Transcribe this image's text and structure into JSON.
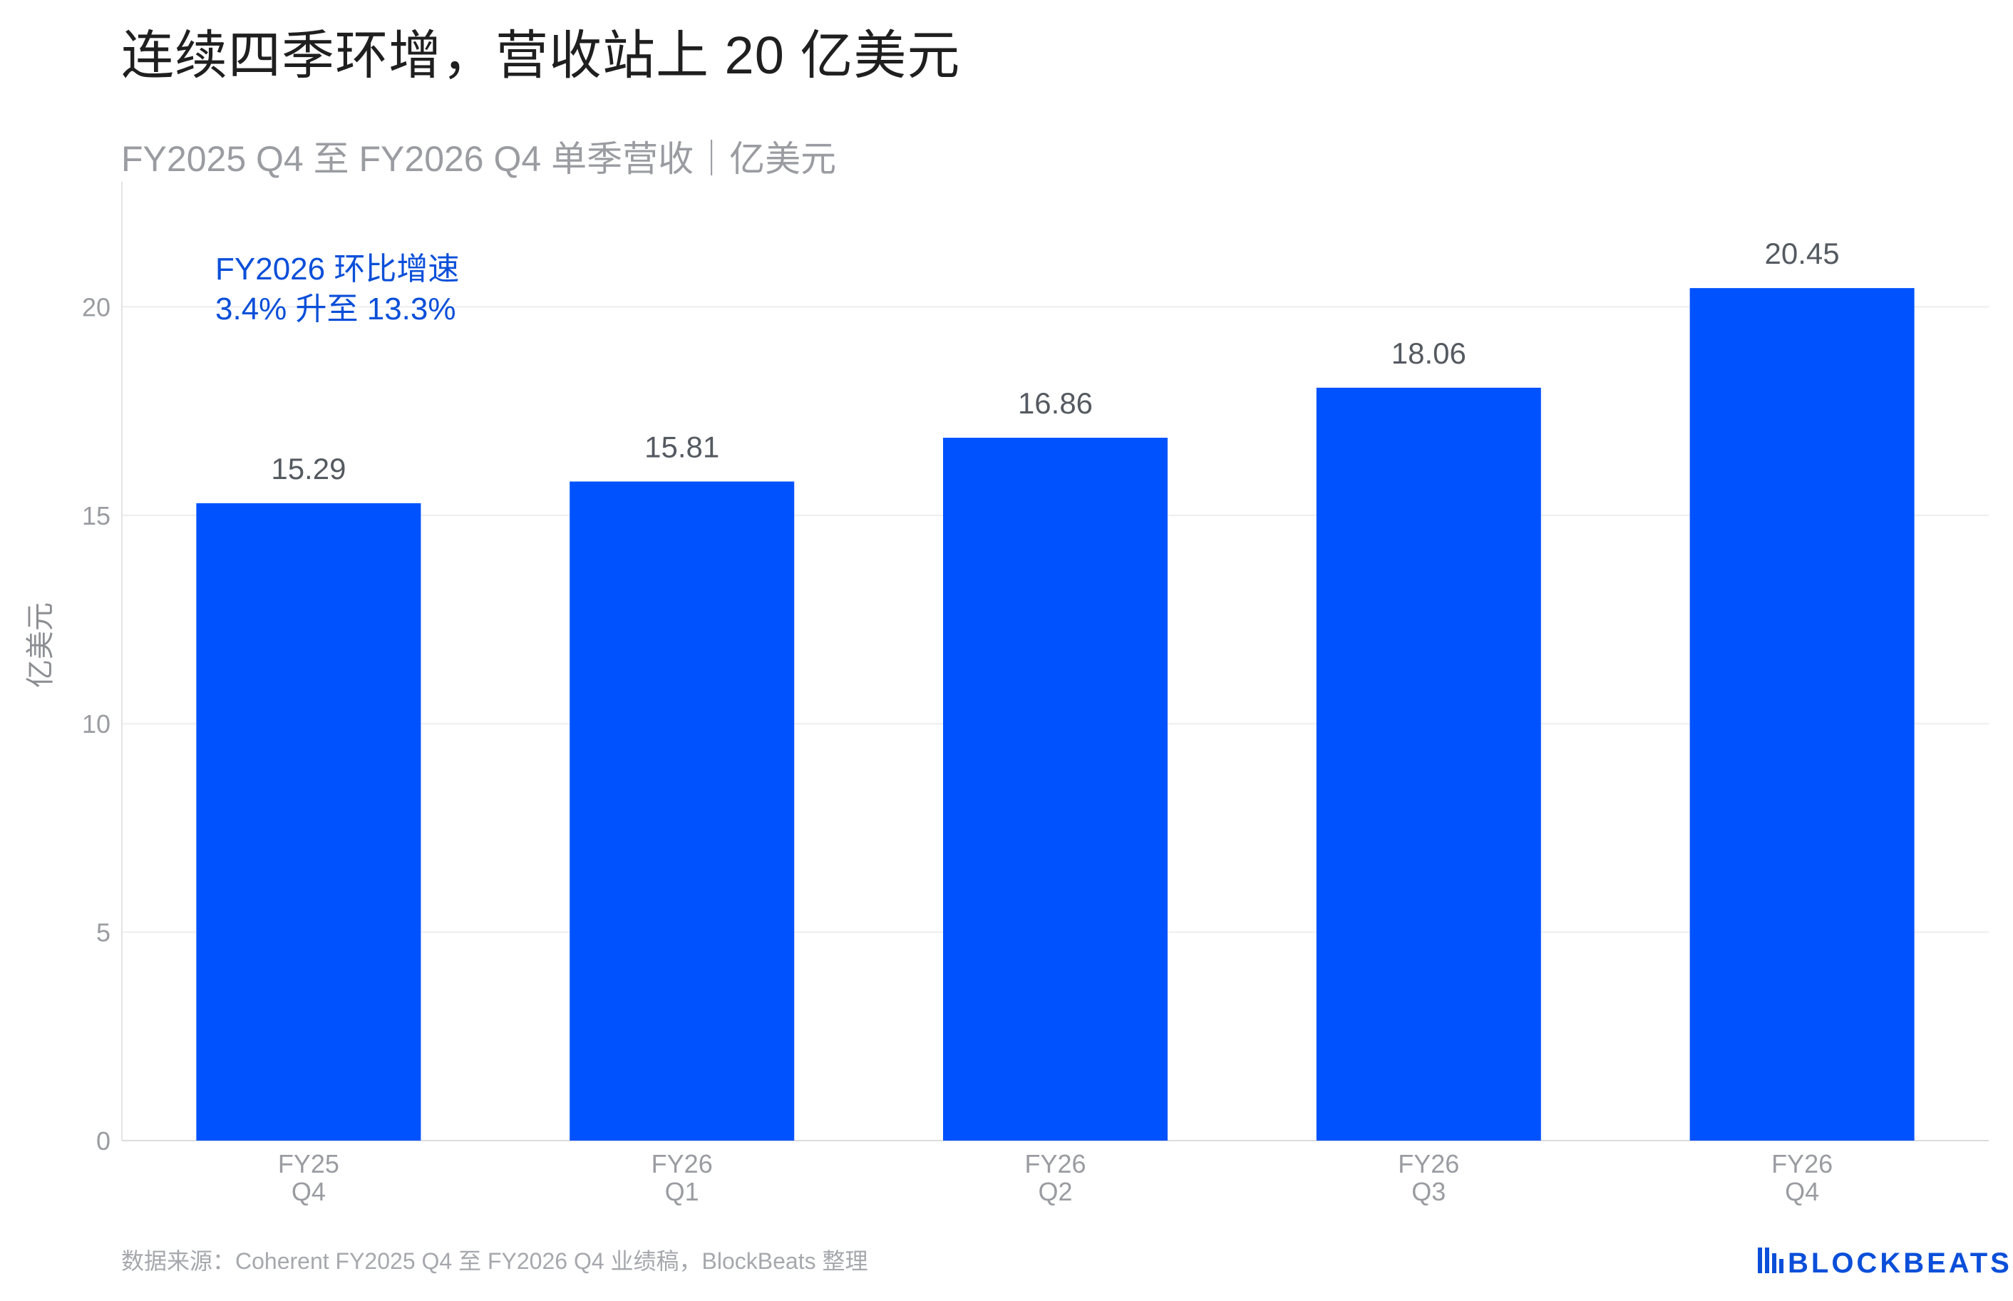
{
  "headline": "连续四季环增，营收站上 20 亿美元",
  "footer": {
    "source": "数据来源：Coherent FY2025 Q4 至 FY2026 Q4 业绩稿，BlockBeats 整理",
    "logo": "BLOCKBEATS",
    "logo_icon": "blockbeats-logo-icon"
  },
  "colors": {
    "bar": "#0052FF",
    "annotation": "#0B4FD9",
    "axis_text": "#9A9CA1",
    "grid": "#EEEEEE"
  },
  "chart_data": {
    "type": "bar",
    "title": "FY2025 Q4 至 FY2026 Q4 单季营收｜亿美元",
    "ylabel": "亿美元",
    "xlabel": "",
    "categories": [
      [
        "FY25",
        "Q4"
      ],
      [
        "FY26",
        "Q1"
      ],
      [
        "FY26",
        "Q2"
      ],
      [
        "FY26",
        "Q3"
      ],
      [
        "FY26",
        "Q4"
      ]
    ],
    "values": [
      15.29,
      15.81,
      16.86,
      18.06,
      20.45
    ],
    "value_labels": [
      "15.29",
      "15.81",
      "16.86",
      "18.06",
      "20.45"
    ],
    "ylim": [
      0,
      23
    ],
    "yticks": [
      0,
      5,
      10,
      15,
      20
    ],
    "grid": true,
    "annotation": [
      "FY2026 环比增速",
      "3.4% 升至 13.3%"
    ]
  }
}
